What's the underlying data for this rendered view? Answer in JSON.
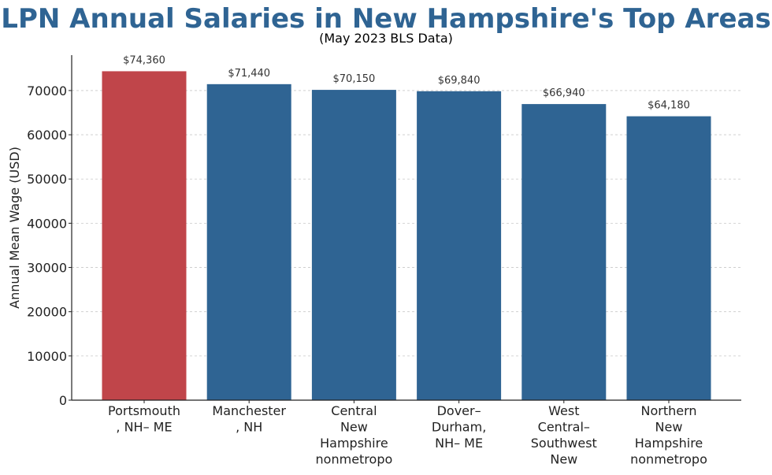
{
  "chart_data": {
    "type": "bar",
    "title": "LPN Annual Salaries in New Hampshire's Top Areas",
    "subtitle": "(May 2023 BLS Data)",
    "xlabel": "",
    "ylabel": "Annual Mean Wage (USD)",
    "ylim": [
      0,
      78000
    ],
    "yticks": [
      0,
      10000,
      20000,
      30000,
      40000,
      50000,
      60000,
      70000
    ],
    "categories": [
      [
        "Portsmouth",
        ", NH– ME"
      ],
      [
        "Manchester",
        ", NH"
      ],
      [
        "Central",
        "New",
        "Hampshire",
        "nonmetropo"
      ],
      [
        "Dover–",
        "Durham,",
        "NH– ME"
      ],
      [
        "West",
        "Central–",
        "Southwest",
        "New"
      ],
      [
        "Northern",
        "New",
        "Hampshire",
        "nonmetropo"
      ]
    ],
    "values": [
      74360,
      71440,
      70150,
      69840,
      66940,
      64180
    ],
    "data_labels": [
      "$74,360",
      "$71,440",
      "$70,150",
      "$69,840",
      "$66,940",
      "$64,180"
    ],
    "bar_colors": [
      "#c0454a",
      "#2f6493",
      "#2f6493",
      "#2f6493",
      "#2f6493",
      "#2f6493"
    ],
    "grid": "horizontal dashed"
  }
}
